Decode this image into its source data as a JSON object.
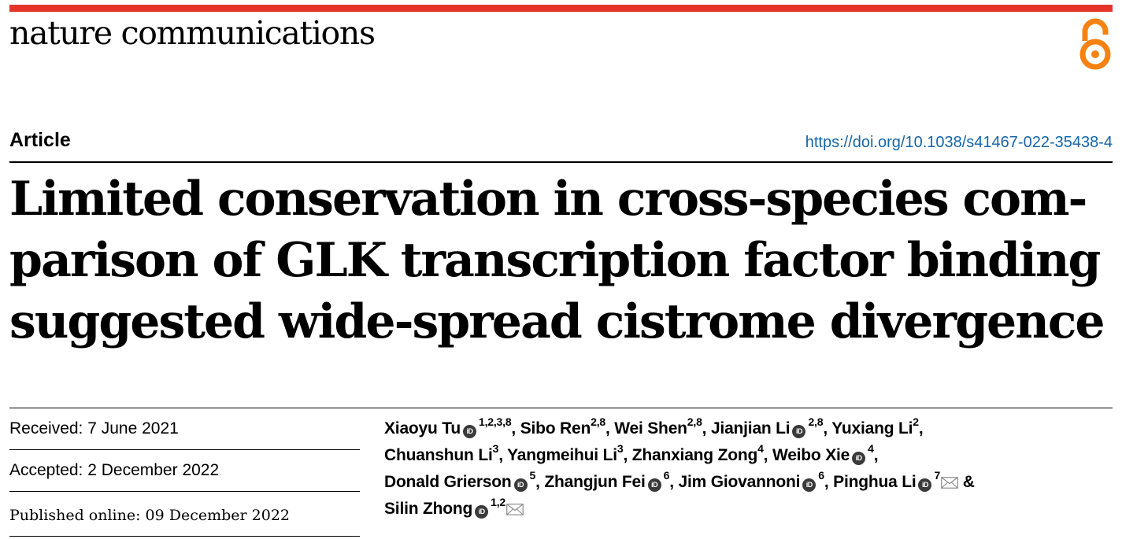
{
  "header": {
    "journal_name": "nature communications",
    "accent_color": "#e5352b",
    "open_access_icon": "open-access-lock-icon",
    "open_access_color": "#f68212"
  },
  "article": {
    "type": "Article",
    "doi": "https://doi.org/10.1038/s41467-022-35438-4",
    "title_lines": [
      "Limited conservation in cross-species com-",
      "parison of GLK transcription factor binding",
      "suggested wide-spread cistrome divergence"
    ]
  },
  "dates": {
    "received": "Received: 7 June 2021",
    "accepted": "Accepted: 2 December 2022",
    "published": "Published online: 09 December 2022"
  },
  "authors": [
    {
      "name": "Xiaoyu Tu",
      "orcid": true,
      "affil": "1,2,3,8",
      "email": false,
      "sep": ", "
    },
    {
      "name": "Sibo Ren",
      "orcid": false,
      "affil": "2,8",
      "email": false,
      "sep": ", "
    },
    {
      "name": "Wei Shen",
      "orcid": false,
      "affil": "2,8",
      "email": false,
      "sep": ", "
    },
    {
      "name": "Jianjian Li",
      "orcid": true,
      "affil": "2,8",
      "email": false,
      "sep": ", "
    },
    {
      "name": "Yuxiang Li",
      "orcid": false,
      "affil": "2",
      "email": false,
      "sep": ","
    },
    {
      "name": "Chuanshun Li",
      "orcid": false,
      "affil": "3",
      "email": false,
      "sep": ", "
    },
    {
      "name": "Yangmeihui Li",
      "orcid": false,
      "affil": "3",
      "email": false,
      "sep": ", "
    },
    {
      "name": "Zhanxiang Zong",
      "orcid": false,
      "affil": "4",
      "email": false,
      "sep": ", "
    },
    {
      "name": "Weibo Xie",
      "orcid": true,
      "affil": "4",
      "email": false,
      "sep": ","
    },
    {
      "name": "Donald Grierson",
      "orcid": true,
      "affil": "5",
      "email": false,
      "sep": ", "
    },
    {
      "name": "Zhangjun Fei",
      "orcid": true,
      "affil": "6",
      "email": false,
      "sep": ", "
    },
    {
      "name": "Jim Giovannoni",
      "orcid": true,
      "affil": "6",
      "email": false,
      "sep": ", "
    },
    {
      "name": "Pinghua Li",
      "orcid": true,
      "affil": "7",
      "email": true,
      "sep": " &"
    },
    {
      "name": "Silin Zhong",
      "orcid": true,
      "affil": "1,2",
      "email": true,
      "sep": ""
    }
  ],
  "author_line_breaks": [
    5,
    9,
    13
  ]
}
